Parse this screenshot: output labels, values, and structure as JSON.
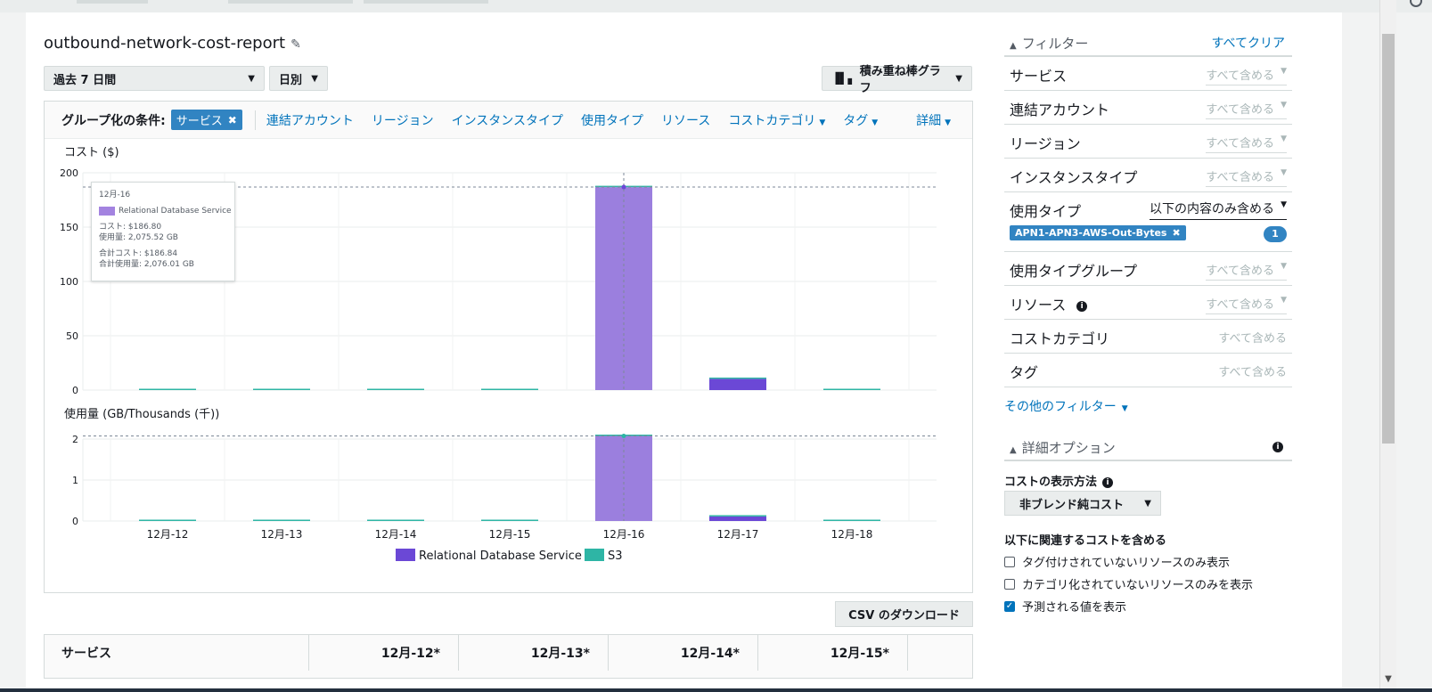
{
  "report": {
    "title": "outbound-network-cost-report"
  },
  "toolbar": {
    "period": "過去 7 日間",
    "granularity": "日別",
    "chart_type": "積み重ね棒グラフ"
  },
  "group_by": {
    "label": "グループ化の条件:",
    "active_chip": "サービス",
    "links": [
      "連結アカウント",
      "リージョン",
      "インスタンスタイプ",
      "使用タイプ",
      "リソース"
    ],
    "dropdown_links": [
      "コストカテゴリ",
      "タグ"
    ],
    "more": "詳細"
  },
  "tooltip": {
    "date": "12月-16",
    "service": "Relational Database Service",
    "cost": "コスト: $186.80",
    "usage": "使用量: 2,075.52 GB",
    "total_cost": "合計コスト: $186.84",
    "total_usage": "合計使用量: 2,076.01 GB"
  },
  "chart_data": [
    {
      "type": "bar",
      "title": "",
      "ylabel": "コスト ($)",
      "xlabel": "",
      "categories": [
        "12月-12",
        "12月-13",
        "12月-14",
        "12月-15",
        "12月-16",
        "12月-17",
        "12月-18"
      ],
      "ylim": [
        0,
        200
      ],
      "yticks": [
        0,
        50,
        100,
        150,
        200
      ],
      "series": [
        {
          "name": "Relational Database Service",
          "values": [
            0,
            0,
            0,
            0,
            186.8,
            10.3,
            0
          ],
          "color": "#6b48d6"
        },
        {
          "name": "S3",
          "values": [
            0.04,
            0.04,
            0.04,
            0.04,
            0.04,
            0.4,
            0.04
          ],
          "color": "#2eb5a5"
        }
      ],
      "reference_line": 186.84,
      "highlight_category": "12月-16",
      "stacked": true,
      "grid": true
    },
    {
      "type": "bar",
      "title": "",
      "ylabel": "使用量 (GB/Thousands (千))",
      "xlabel": "",
      "categories": [
        "12月-12",
        "12月-13",
        "12月-14",
        "12月-15",
        "12月-16",
        "12月-17",
        "12月-18"
      ],
      "ylim": [
        0,
        2.1
      ],
      "yticks": [
        0,
        1,
        2
      ],
      "series": [
        {
          "name": "Relational Database Service",
          "values": [
            0,
            0,
            0,
            0,
            2.0755,
            0.11,
            0
          ],
          "color": "#6b48d6"
        },
        {
          "name": "S3",
          "values": [
            0.0005,
            0.0005,
            0.0005,
            0.0005,
            0.0005,
            0.005,
            0.0005
          ],
          "color": "#2eb5a5"
        }
      ],
      "reference_line": 2.076,
      "highlight_category": "12月-16",
      "stacked": true,
      "grid": true
    }
  ],
  "legend": [
    {
      "name": "Relational Database Service",
      "color": "#6b48d6"
    },
    {
      "name": "S3",
      "color": "#2eb5a5"
    }
  ],
  "actions": {
    "csv_download": "CSV のダウンロード"
  },
  "table": {
    "headers": [
      "サービス",
      "12月-12*",
      "12月-13*",
      "12月-14*",
      "12月-15*"
    ]
  },
  "filters": {
    "header": "フィルター",
    "clear_all": "すべてクリア",
    "rows": [
      {
        "name": "サービス",
        "value": "すべて含める"
      },
      {
        "name": "連結アカウント",
        "value": "すべて含める"
      },
      {
        "name": "リージョン",
        "value": "すべて含める"
      },
      {
        "name": "インスタンスタイプ",
        "value": "すべて含める"
      },
      {
        "name": "使用タイプ",
        "value": "以下の内容のみ含める"
      },
      {
        "name": "使用タイプグループ",
        "value": "すべて含める"
      },
      {
        "name": "リソース",
        "value": "すべて含める"
      },
      {
        "name": "コストカテゴリ",
        "value": "すべて含める"
      },
      {
        "name": "タグ",
        "value": "すべて含める"
      }
    ],
    "usage_type_chip": "APN1-APN3-AWS-Out-Bytes",
    "usage_type_count": "1",
    "more_filters": "その他のフィルター"
  },
  "advanced": {
    "header": "詳細オプション",
    "cost_display_label": "コストの表示方法",
    "cost_display_value": "非ブレンド純コスト",
    "include_label": "以下に関連するコストを含める",
    "checkboxes": [
      {
        "label": "タグ付けされていないリソースのみ表示",
        "checked": false
      },
      {
        "label": "カテゴリ化されていないリソースのみを表示",
        "checked": false
      },
      {
        "label": "予測される値を表示",
        "checked": true
      }
    ]
  }
}
